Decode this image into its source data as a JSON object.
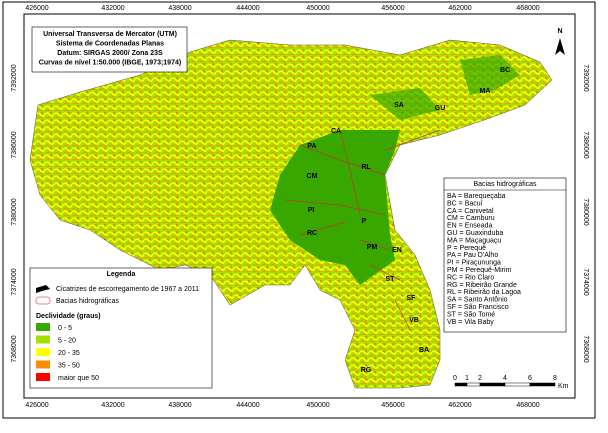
{
  "header": {
    "lines": [
      "Universal Transversa de Mercator (UTM)",
      "Sistema de Coordenadas Planas",
      "Datum: SIRGAS 2000/ Zona 23S",
      "Curvas de nível 1:50.000 (IBGE, 1973;1974)"
    ]
  },
  "axes": {
    "x_top": [
      "426000",
      "432000",
      "438000",
      "444000",
      "450000",
      "456000",
      "462000",
      "468000"
    ],
    "x_bottom": [
      "426000",
      "432000",
      "438000",
      "444000",
      "450000",
      "456000",
      "462000",
      "468000"
    ],
    "y_left": [
      "7392000",
      "7386000",
      "7380000",
      "7374000",
      "7368000"
    ],
    "y_right": [
      "7392000",
      "7386000",
      "7380000",
      "7374000",
      "7368000"
    ]
  },
  "north": "N",
  "map_labels": [
    "BC",
    "MA",
    "GU",
    "SA",
    "CA",
    "PA",
    "RL",
    "CM",
    "PI",
    "P",
    "RC",
    "PM",
    "EN",
    "ST",
    "SF",
    "VB",
    "BA",
    "RG"
  ],
  "legend": {
    "title": "Legenda",
    "items": [
      "Cicatrizes de escorregamento de 1967 a 2011",
      "Bacias hidrográficas"
    ],
    "slope_title": "Declividade (graus)",
    "classes": [
      {
        "label": "0 - 5",
        "color": "#38a800"
      },
      {
        "label": "5 - 20",
        "color": "#a3e000"
      },
      {
        "label": "20 - 35",
        "color": "#ffff00"
      },
      {
        "label": "35 - 50",
        "color": "#ff8c00"
      },
      {
        "label": "maior que 50",
        "color": "#ff0000"
      }
    ]
  },
  "basin_key": {
    "title": "Bacias hidrográficas",
    "items": [
      "BA = Barequeçaba",
      "BC = Bacuí",
      "CA = Canivetal",
      "CM = Camburu",
      "EN = Enseada",
      "GU = Guaxinduba",
      "MA = Maçaguaçu",
      "P = Perequê",
      "PA = Pau D'Alho",
      "PI = Piraçununga",
      "PM = Perequê-Mirim",
      "RC = Rio Claro",
      "RG = Ribeirão Grande",
      "RL = Ribeirão da Lagoa",
      "SA = Santo Antônio",
      "SF = São Francisco",
      "ST = São Tomé",
      "VB = Vila Baby"
    ]
  },
  "scale": {
    "ticks": [
      "0",
      "1",
      "2",
      "4",
      "6",
      "8"
    ],
    "unit": "Km"
  }
}
